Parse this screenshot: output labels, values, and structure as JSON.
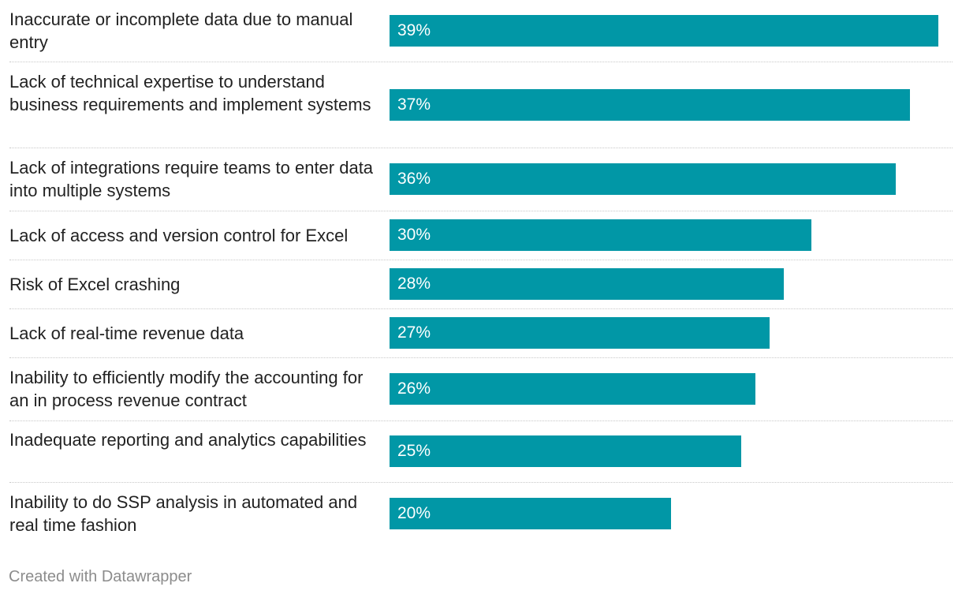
{
  "chart_data": {
    "type": "bar",
    "orientation": "horizontal",
    "categories": [
      "Inaccurate or incomplete data due to manual entry",
      "Lack of technical expertise to understand business requirements and implement systems",
      "Lack of integrations require teams to enter data into multiple systems",
      "Lack of access and version control for Excel",
      "Risk of Excel crashing",
      "Lack of real-time revenue data",
      "Inability to efficiently modify the accounting for an in process revenue contract",
      "Inadequate reporting and analytics capabilities",
      "Inability to do SSP analysis in automated and real time fashion"
    ],
    "values": [
      39,
      37,
      36,
      30,
      28,
      27,
      26,
      25,
      20
    ],
    "value_labels": [
      "39%",
      "37%",
      "36%",
      "30%",
      "28%",
      "27%",
      "26%",
      "25%",
      "20%"
    ],
    "xlim": [
      0,
      39
    ],
    "bar_color": "#0197a6",
    "grid": false
  },
  "footer": {
    "credit": "Created with Datawrapper"
  }
}
